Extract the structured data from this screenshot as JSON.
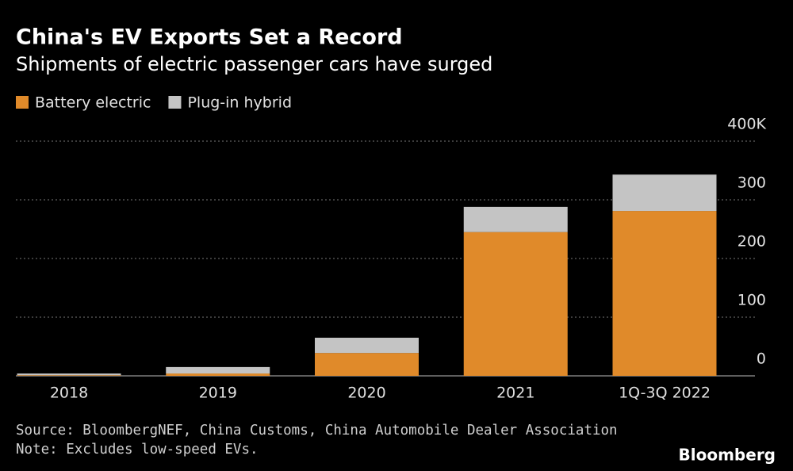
{
  "chart_data": {
    "type": "stacked_bar",
    "title": "China's EV Exports Set a Record",
    "subtitle": "Shipments of electric passenger cars have surged",
    "categories": [
      "2018",
      "2019",
      "2020",
      "2021",
      "1Q-3Q 2022"
    ],
    "series": [
      {
        "name": "Battery electric",
        "color": "#e08a2a",
        "values": [
          1,
          4,
          39,
          245,
          281
        ]
      },
      {
        "name": "Plug-in hybrid",
        "color": "#c4c4c4",
        "values": [
          3,
          11,
          26,
          43,
          62
        ]
      }
    ],
    "ylim": [
      0,
      400
    ],
    "yticks": [
      0,
      100,
      200,
      300,
      {
        "value": 400,
        "label": "400K"
      }
    ],
    "grid": true,
    "legend": "top-left",
    "source": "Source: BloombergNEF, China Customs, China Automobile Dealer Association",
    "note": "Note: Excludes low-speed EVs.",
    "brand": "Bloomberg"
  }
}
